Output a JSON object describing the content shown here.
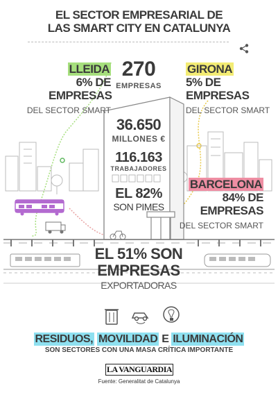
{
  "title_line1": "EL SECTOR EMPRESARIAL DE",
  "title_line2": "LAS SMART CITY EN CATALUNYA",
  "share_icon": "share-icon",
  "lleida": {
    "name": "LLEIDA",
    "pct": "6% DE",
    "empresas": "EMPRESAS",
    "sector": "DEL SECTOR SMART"
  },
  "girona": {
    "name": "GIRONA",
    "pct": "5% DE",
    "empresas": "EMPRESAS",
    "sector": "DEL SECTOR SMART"
  },
  "barcelona": {
    "name": "BARCELONA",
    "pct": "84% DE",
    "empresas": "EMPRESAS",
    "sector": "DEL SECTOR SMART"
  },
  "stats": {
    "companies_value": "270",
    "companies_label": "EMPRESAS",
    "millions_value": "36.650",
    "millions_label": "MILLONES €",
    "workers_value": "116.163",
    "workers_label": "TRABAJADORES",
    "pimes_value": "EL 82%",
    "pimes_label": "SON PIMES",
    "export_line1": "EL 51% SON",
    "export_line2": "EMPRESAS",
    "export_line3": "EXPORTADORAS"
  },
  "sectors": {
    "residuos": "RESIDUOS,",
    "movilidad": "MOVILIDAD",
    "e": "E",
    "iluminacion": "ILUMINACIÓN",
    "subtitle": "SON SECTORES CON UNA MASA CRÍTICA IMPORTANTE"
  },
  "logo_text": "LA VANGUARDIA",
  "source": "Fuente: Generalitat de Catalunya",
  "colors": {
    "lleida": "#a6df7d",
    "girona": "#f3ec74",
    "barcelona": "#ef8ea3",
    "sectors": "#8ee0f0",
    "tram": "#b36ad0"
  }
}
